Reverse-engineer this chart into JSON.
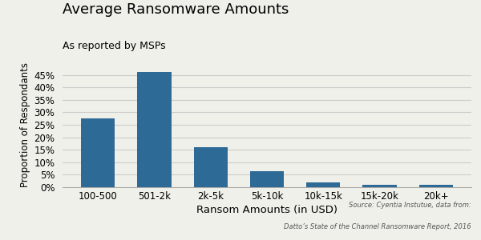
{
  "title": "Average Ransomware Amounts",
  "subtitle": "As reported by MSPs",
  "xlabel": "Ransom Amounts (in USD)",
  "ylabel": "Proportion of Respondants",
  "categories": [
    "100-500",
    "501-2k",
    "2k-5k",
    "5k-10k",
    "10k-15k",
    "15k-20k",
    "20k+"
  ],
  "values": [
    0.275,
    0.46,
    0.16,
    0.063,
    0.02,
    0.01,
    0.01
  ],
  "bar_color": "#2e6a96",
  "ylim": [
    0,
    0.5
  ],
  "yticks": [
    0.0,
    0.05,
    0.1,
    0.15,
    0.2,
    0.25,
    0.3,
    0.35,
    0.4,
    0.45
  ],
  "source_line1": "Source: Cyentia Instutue, data from:",
  "source_line2": "Datto’s State of the Channel Ransomware Report, 2016",
  "background_color": "#f0f0eb",
  "grid_color": "#cccccc"
}
